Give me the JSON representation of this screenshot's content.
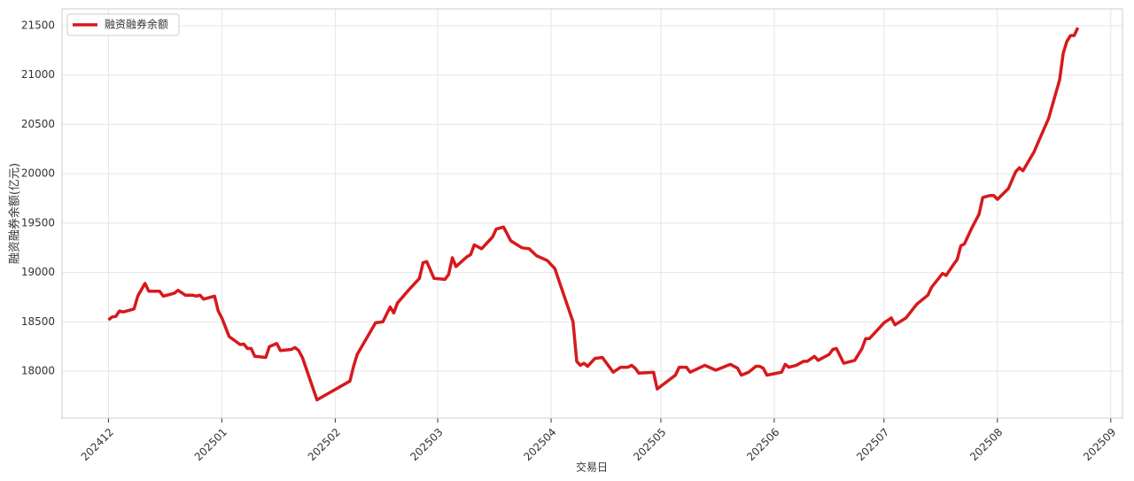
{
  "chart_data": {
    "type": "line",
    "xlabel": "交易日",
    "ylabel": "融资融券余额(亿元)",
    "x": [
      0,
      1,
      2,
      3,
      4,
      7,
      8,
      10,
      11,
      14,
      15,
      18,
      19,
      21,
      23,
      24,
      25,
      26,
      29,
      30,
      31,
      33,
      36,
      37,
      38,
      39,
      40,
      43,
      44,
      46,
      47,
      50,
      51,
      52,
      53,
      57,
      66,
      67,
      68,
      73,
      75,
      77,
      78,
      79,
      82,
      85,
      86,
      87,
      89,
      92,
      93,
      94,
      95,
      98,
      99,
      100,
      102,
      105,
      106,
      108,
      110,
      113,
      115,
      117,
      120,
      121,
      122,
      127,
      128,
      129,
      130,
      131,
      133,
      135,
      138,
      140,
      142,
      143,
      144,
      145,
      149,
      150,
      155,
      156,
      158,
      159,
      163,
      166,
      168,
      170,
      172,
      173,
      175,
      177,
      178,
      179,
      180,
      184,
      185,
      186,
      188,
      190,
      191,
      193,
      194,
      197,
      198,
      199,
      201,
      204,
      206,
      207,
      208,
      211,
      212,
      214,
      215,
      218,
      221,
      224,
      225,
      228,
      229,
      231,
      232,
      233,
      234,
      236,
      238,
      239,
      241,
      242,
      243,
      246,
      248,
      249,
      250,
      253,
      255,
      257,
      260,
      261,
      262,
      263,
      264,
      265
    ],
    "series": [
      {
        "name": "融资融券余额",
        "color": "#d7191c",
        "values": [
          18520,
          18550,
          18555,
          18610,
          18600,
          18630,
          18760,
          18890,
          18810,
          18810,
          18760,
          18790,
          18820,
          18770,
          18770,
          18760,
          18770,
          18730,
          18760,
          18610,
          18540,
          18350,
          18270,
          18275,
          18230,
          18230,
          18150,
          18140,
          18250,
          18280,
          18210,
          18220,
          18240,
          18210,
          18140,
          17710,
          17900,
          18050,
          18170,
          18490,
          18500,
          18650,
          18590,
          18690,
          18820,
          18940,
          19100,
          19110,
          18940,
          18930,
          18980,
          19150,
          19060,
          19160,
          19180,
          19280,
          19240,
          19360,
          19440,
          19460,
          19320,
          19250,
          19240,
          19170,
          19120,
          19080,
          19040,
          18500,
          18100,
          18060,
          18080,
          18050,
          18130,
          18140,
          17990,
          18040,
          18040,
          18060,
          18030,
          17980,
          17990,
          17820,
          17960,
          18040,
          18040,
          17990,
          18060,
          18010,
          18040,
          18070,
          18030,
          17960,
          17990,
          18050,
          18050,
          18030,
          17960,
          17990,
          18070,
          18040,
          18060,
          18100,
          18100,
          18150,
          18110,
          18170,
          18220,
          18230,
          18080,
          18110,
          18230,
          18330,
          18330,
          18450,
          18490,
          18540,
          18470,
          18540,
          18680,
          18770,
          18850,
          18990,
          18970,
          19080,
          19130,
          19270,
          19290,
          19450,
          19590,
          19760,
          19780,
          19780,
          19740,
          19850,
          20020,
          20060,
          20030,
          20220,
          20390,
          20560,
          20950,
          21220,
          21340,
          21400,
          21400,
          21480
        ]
      }
    ],
    "xlim": [
      -12.7,
      277.2
    ],
    "xticks": [
      {
        "value": 0,
        "label": "202412"
      },
      {
        "value": 31,
        "label": "202501"
      },
      {
        "value": 62,
        "label": "202502"
      },
      {
        "value": 90,
        "label": "202503"
      },
      {
        "value": 121,
        "label": "202504"
      },
      {
        "value": 151,
        "label": "202505"
      },
      {
        "value": 182,
        "label": "202506"
      },
      {
        "value": 212,
        "label": "202507"
      },
      {
        "value": 243,
        "label": "202508"
      },
      {
        "value": 274,
        "label": "202509"
      }
    ],
    "ylim": [
      17525,
      21670
    ],
    "yticks": [
      18000,
      18500,
      19000,
      19500,
      20000,
      20500,
      21000,
      21500
    ],
    "grid": true,
    "legend": "upper left"
  }
}
